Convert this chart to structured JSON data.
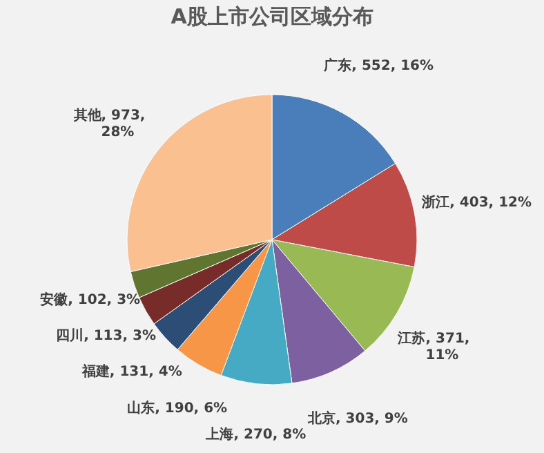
{
  "chart_data": {
    "type": "pie",
    "title": "A股上市公司区域分布",
    "categories": [
      "广东",
      "浙江",
      "江苏",
      "北京",
      "上海",
      "山东",
      "福建",
      "四川",
      "安徽",
      "其他"
    ],
    "values": [
      552,
      403,
      371,
      303,
      270,
      190,
      131,
      113,
      102,
      973
    ],
    "colors": [
      "#4a7ebb",
      "#be4b48",
      "#98b954",
      "#7d60a0",
      "#46aac5",
      "#f79646",
      "#2c4d75",
      "#772c2a",
      "#5f7530",
      "#fac090"
    ],
    "value_labels": [
      ", 552, 16%",
      ", 403, 12%",
      ", 371, 11%",
      ", 303, 9%",
      ", 270, 8%",
      ", 190, 6%",
      ", 131, 4%",
      ", 113, 3%",
      ", 102, 3%",
      ", 973, 28%"
    ],
    "legend": false
  }
}
